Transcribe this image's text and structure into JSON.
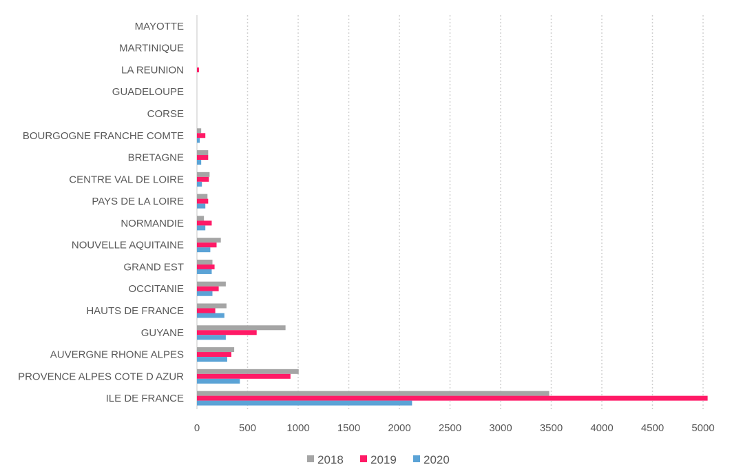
{
  "chart_data": {
    "type": "bar",
    "orientation": "horizontal",
    "categories": [
      "ILE DE FRANCE",
      "PROVENCE ALPES COTE D AZUR",
      "AUVERGNE RHONE ALPES",
      "GUYANE",
      "HAUTS DE FRANCE",
      "OCCITANIE",
      "GRAND EST",
      "NOUVELLE AQUITAINE",
      "NORMANDIE",
      "PAYS DE LA LOIRE",
      "CENTRE VAL DE LOIRE",
      "BRETAGNE",
      "BOURGOGNE FRANCHE COMTE",
      "CORSE",
      "GUADELOUPE",
      "LA REUNION",
      "MARTINIQUE",
      "MAYOTTE"
    ],
    "series": [
      {
        "name": "2018",
        "color": "#a5a5a5",
        "values": [
          3480,
          1005,
          368,
          875,
          292,
          285,
          153,
          236,
          69,
          104,
          125,
          111,
          42,
          0,
          0,
          0,
          0,
          0
        ]
      },
      {
        "name": "2019",
        "color": "#ff1a66",
        "values": [
          5045,
          924,
          340,
          590,
          181,
          215,
          174,
          194,
          146,
          111,
          118,
          111,
          83,
          0,
          0,
          20,
          0,
          0
        ]
      },
      {
        "name": "2020",
        "color": "#5ba3d6",
        "values": [
          2125,
          424,
          299,
          285,
          271,
          153,
          146,
          132,
          83,
          83,
          49,
          42,
          28,
          0,
          0,
          0,
          0,
          0
        ]
      }
    ],
    "xlim": [
      0,
      5000
    ],
    "xticks": [
      "0",
      "500",
      "1000",
      "1500",
      "2000",
      "2500",
      "3000",
      "3500",
      "4000",
      "4500",
      "5000"
    ],
    "grid": "vertical dotted",
    "legend": "bottom",
    "title": "",
    "xlabel": "",
    "ylabel": ""
  }
}
